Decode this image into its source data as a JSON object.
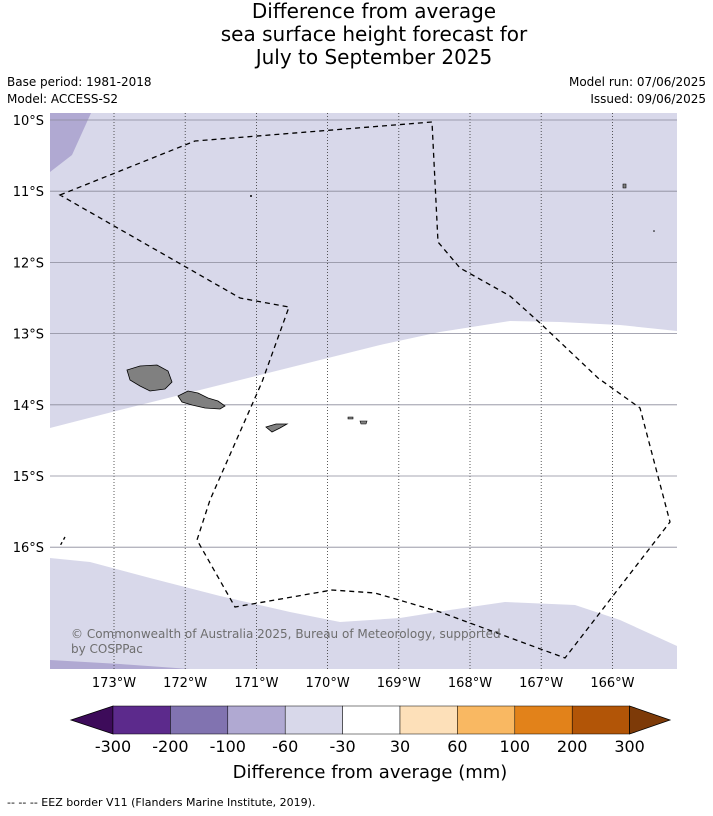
{
  "title": {
    "line1": "Difference from average",
    "line2": "sea surface height forecast for",
    "line3": "July to September 2025"
  },
  "meta": {
    "base_period": "Base period: 1981-2018",
    "model": "Model: ACCESS-S2",
    "model_run": "Model run: 07/06/2025",
    "issued": "Issued: 09/06/2025"
  },
  "map": {
    "lat_labels": [
      "10°S",
      "11°S",
      "12°S",
      "13°S",
      "14°S",
      "15°S",
      "16°S"
    ],
    "lon_labels": [
      "173°W",
      "172°W",
      "171°W",
      "170°W",
      "169°W",
      "168°W",
      "167°W",
      "166°W"
    ],
    "credit_line1": "© Commonwealth of Australia 2025, Bureau of Meteorology, supported",
    "credit_line2": "by COSPPac",
    "region_categories": {
      "north_band": "-60 to -30",
      "south_band": "-60 to -30",
      "far_north_west": "-100 to -60",
      "central": "-30 to 30"
    },
    "colors": {
      "land": "#808080",
      "eez_border": "#000000"
    }
  },
  "colorbar": {
    "title": "Difference from average (mm)",
    "ticks": [
      "-300",
      "-200",
      "-100",
      "-60",
      "-30",
      "30",
      "60",
      "100",
      "200",
      "300"
    ],
    "colors": [
      "#3d0b5a",
      "#5c2a8c",
      "#8173b0",
      "#b0a9d2",
      "#d8d8ea",
      "#ffffff",
      "#fde0b9",
      "#f9b862",
      "#e2821a",
      "#b25507",
      "#7d3a08"
    ]
  },
  "footer": "--  --  -- EEZ border V11 (Flanders Marine Institute, 2019)."
}
